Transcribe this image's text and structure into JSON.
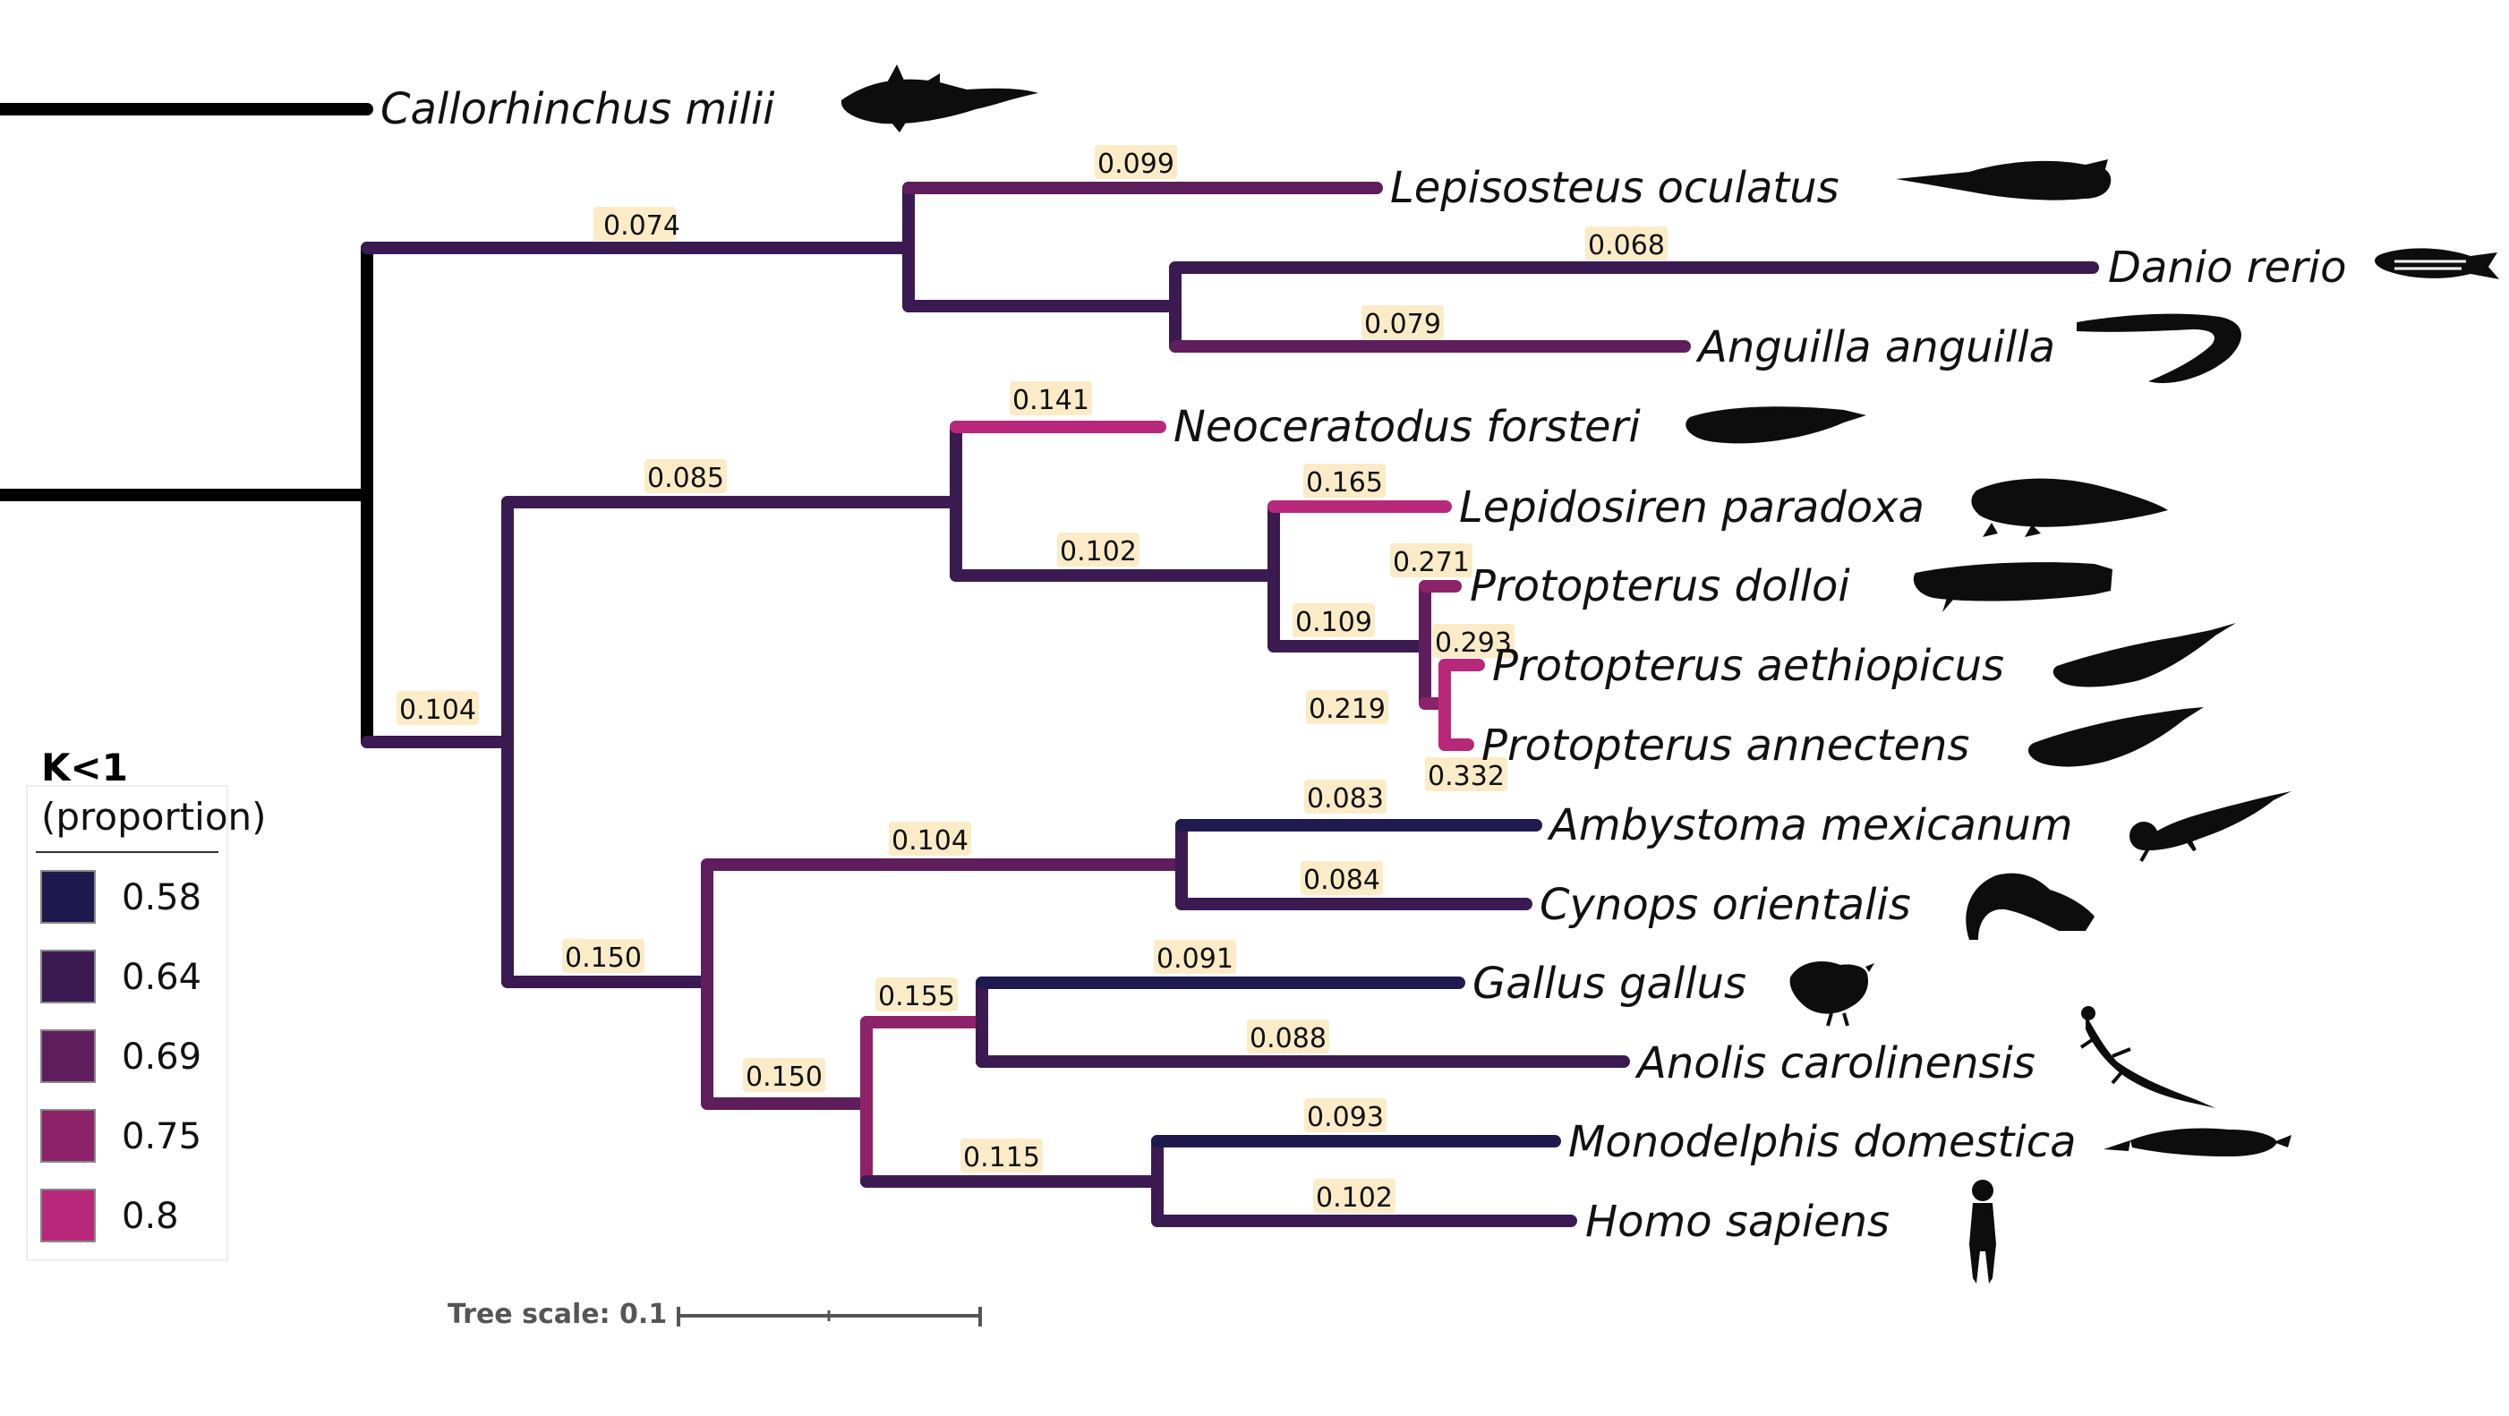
{
  "taxa": {
    "callorhinchus": "Callorhinchus milii",
    "lepisosteus": "Lepisosteus oculatus",
    "danio": "Danio rerio",
    "anguilla": "Anguilla anguilla",
    "neoceratodus": "Neoceratodus forsteri",
    "lepidosiren": "Lepidosiren paradoxa",
    "p_dolloi": "Protopterus dolloi",
    "p_aethiopicus": "Protopterus aethiopicus",
    "p_annectens": "Protopterus annectens",
    "ambystoma": "Ambystoma mexicanum",
    "cynops": "Cynops orientalis",
    "gallus": "Gallus gallus",
    "anolis": "Anolis carolinensis",
    "monodelphis": "Monodelphis domestica",
    "homo": "Homo sapiens"
  },
  "branch_labels": {
    "actinopterygii": "0.074",
    "lepisosteus": "0.099",
    "danio": "0.068",
    "anguilla": "0.079",
    "sarcopterygii": "0.104",
    "lungfish": "0.085",
    "neoceratodus": "0.141",
    "lepidosirenidae": "0.102",
    "lepidosiren": "0.165",
    "protopterus": "0.109",
    "p_dolloi": "0.271",
    "p_aeth_ann": "0.219",
    "p_aethiopicus": "0.293",
    "p_annectens": "0.332",
    "tetrapoda": "0.150",
    "amphibia": "0.104",
    "ambystoma": "0.083",
    "cynops": "0.084",
    "amniota": "0.150",
    "sauropsida": "0.155",
    "gallus": "0.091",
    "anolis": "0.088",
    "mammalia": "0.115",
    "monodelphis": "0.093",
    "homo": "0.102"
  },
  "colors": {
    "root": "#000000",
    "c058": "#1e1a4d",
    "c064": "#3b1a52",
    "c069": "#5e1e5c",
    "c075": "#8c2369",
    "c080": "#b8287a"
  },
  "legend": {
    "title": "K<1",
    "subtitle": "(proportion)",
    "items": [
      {
        "value": "0.58",
        "color": "#1e1a4d"
      },
      {
        "value": "0.64",
        "color": "#3b1a52"
      },
      {
        "value": "0.69",
        "color": "#5e1e5c"
      },
      {
        "value": "0.75",
        "color": "#8c2369"
      },
      {
        "value": "0.8",
        "color": "#b8287a"
      }
    ]
  },
  "scale": {
    "label": "Tree scale: 0.1"
  },
  "silhouettes": [
    "chimaera-icon",
    "gar-icon",
    "zebrafish-icon",
    "eel-icon",
    "lungfish-icon",
    "lepidosiren-icon",
    "protopterus-dolloi-icon",
    "protopterus-aethiopicus-icon",
    "protopterus-annectens-icon",
    "axolotl-icon",
    "newt-icon",
    "chicken-icon",
    "anole-icon",
    "opossum-icon",
    "human-icon"
  ]
}
